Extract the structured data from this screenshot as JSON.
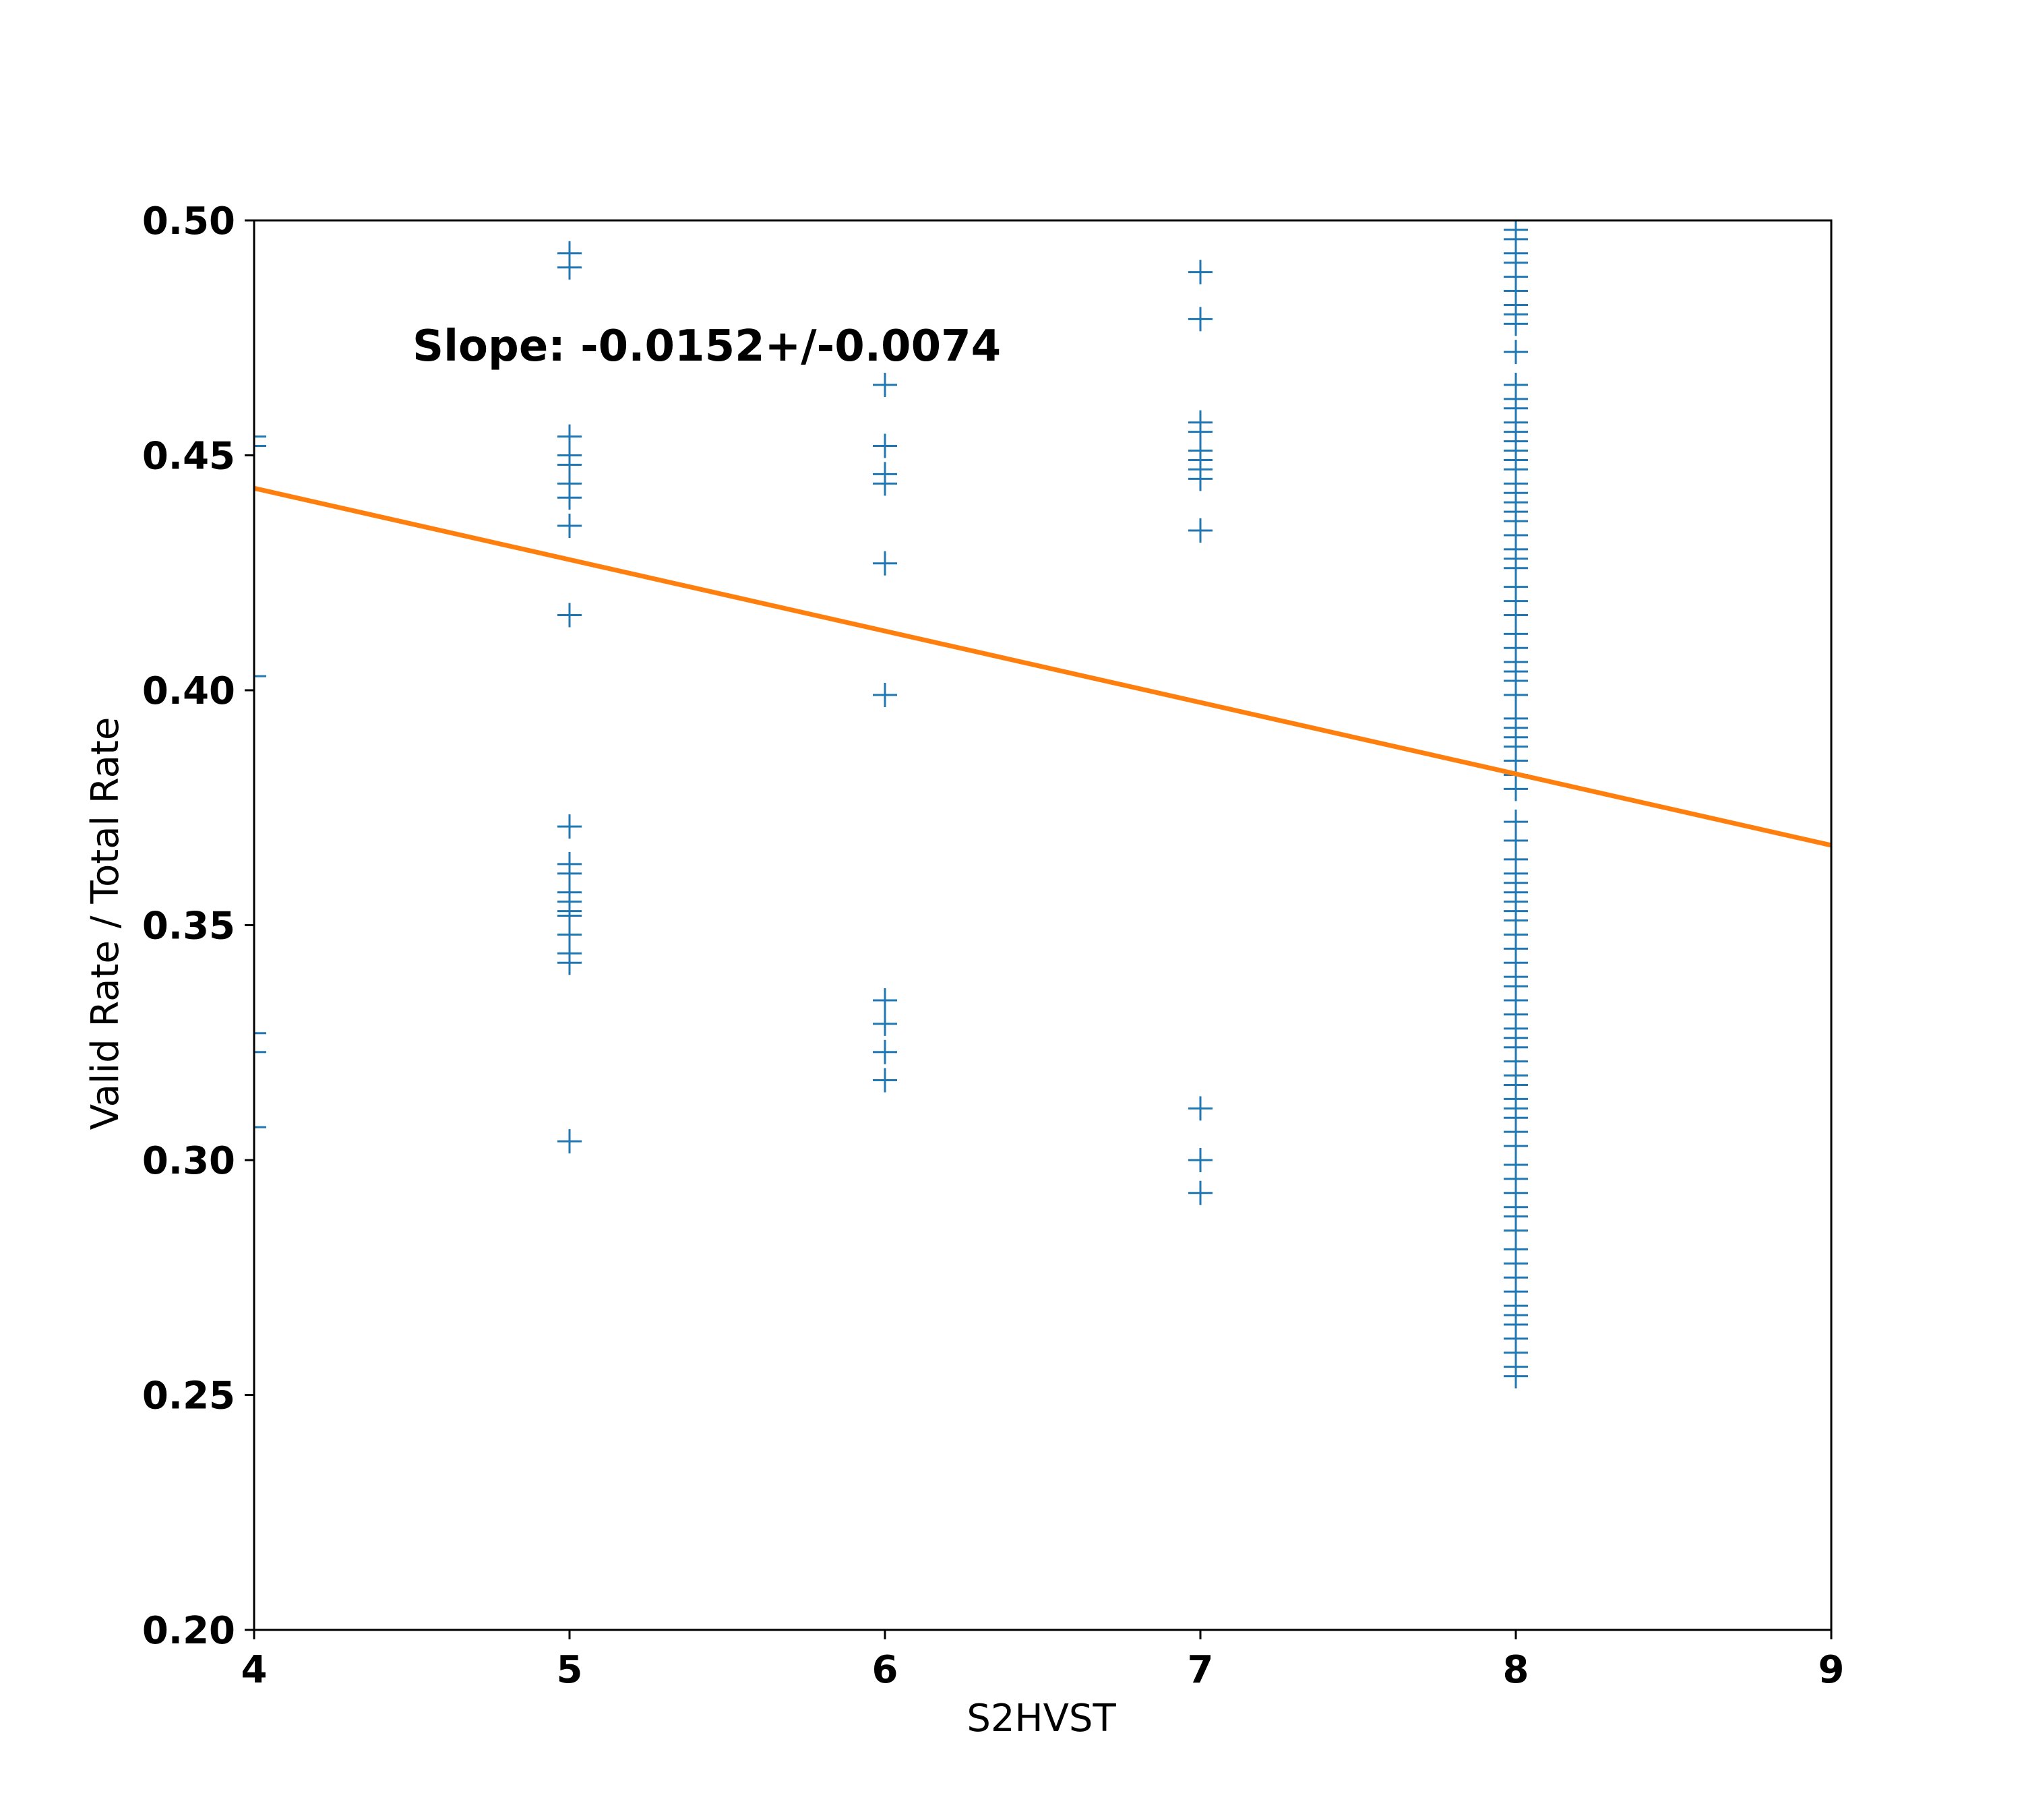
{
  "chart_data": {
    "type": "scatter",
    "xlabel": "S2HVST",
    "ylabel": "Valid Rate / Total Rate",
    "xlim": [
      4,
      9
    ],
    "ylim": [
      0.2,
      0.5
    ],
    "x_ticks": [
      "4",
      "5",
      "6",
      "7",
      "8",
      "9"
    ],
    "y_ticks": [
      "0.20",
      "0.25",
      "0.30",
      "0.35",
      "0.40",
      "0.45",
      "0.50"
    ],
    "annotation": "Slope: -0.0152+/-0.0074",
    "grid": false,
    "marker": "+",
    "colors": {
      "points": "#1f77b4",
      "fit": "#ff7f0e",
      "axes": "#000000"
    },
    "fit_line": {
      "x": [
        4,
        9
      ],
      "y": [
        0.443,
        0.367
      ]
    },
    "groups": [
      {
        "x": 4,
        "y": [
          0.454,
          0.452,
          0.403,
          0.327,
          0.323,
          0.307
        ]
      },
      {
        "x": 5,
        "y": [
          0.493,
          0.49,
          0.454,
          0.45,
          0.448,
          0.444,
          0.441,
          0.435,
          0.416,
          0.371,
          0.363,
          0.361,
          0.357,
          0.355,
          0.353,
          0.352,
          0.348,
          0.344,
          0.342,
          0.304
        ]
      },
      {
        "x": 6,
        "y": [
          0.465,
          0.452,
          0.446,
          0.444,
          0.427,
          0.399,
          0.334,
          0.329,
          0.323,
          0.317
        ]
      },
      {
        "x": 7,
        "y": [
          0.489,
          0.479,
          0.457,
          0.455,
          0.451,
          0.449,
          0.447,
          0.445,
          0.434,
          0.311,
          0.3,
          0.293
        ]
      },
      {
        "x": 8,
        "y": [
          0.5,
          0.498,
          0.496,
          0.493,
          0.491,
          0.488,
          0.485,
          0.482,
          0.48,
          0.478,
          0.472,
          0.465,
          0.462,
          0.46,
          0.457,
          0.455,
          0.453,
          0.451,
          0.449,
          0.447,
          0.444,
          0.442,
          0.44,
          0.438,
          0.436,
          0.433,
          0.43,
          0.428,
          0.426,
          0.422,
          0.419,
          0.416,
          0.412,
          0.409,
          0.406,
          0.404,
          0.402,
          0.399,
          0.394,
          0.392,
          0.39,
          0.388,
          0.385,
          0.382,
          0.379,
          0.372,
          0.368,
          0.364,
          0.361,
          0.359,
          0.357,
          0.355,
          0.353,
          0.351,
          0.348,
          0.345,
          0.342,
          0.339,
          0.337,
          0.334,
          0.331,
          0.328,
          0.326,
          0.324,
          0.321,
          0.318,
          0.316,
          0.313,
          0.311,
          0.309,
          0.306,
          0.303,
          0.299,
          0.296,
          0.293,
          0.29,
          0.288,
          0.285,
          0.281,
          0.278,
          0.275,
          0.272,
          0.269,
          0.267,
          0.265,
          0.262,
          0.259,
          0.256,
          0.254
        ]
      }
    ]
  }
}
